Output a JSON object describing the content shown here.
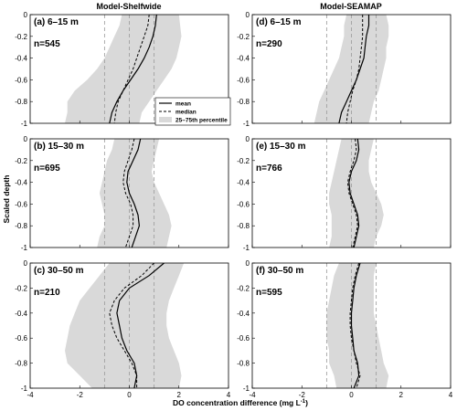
{
  "figure": {
    "column_titles": [
      "Model-Shelfwide",
      "Model-SEAMAP"
    ],
    "xlabel": "DO concentration difference (mg L",
    "xlabel_sup": "-1",
    "xlabel_end": ")",
    "ylabel": "Scaled depth"
  },
  "legend": {
    "mean": "mean",
    "median": "median",
    "band": "25–75th percentile"
  },
  "colors": {
    "band": "#d9d9d9",
    "line": "#000000",
    "ref": "#999999"
  },
  "chart_data": [
    {
      "type": "area",
      "panel": "(a) 6–15 m",
      "n": "n=545",
      "xlim": [
        -4,
        4
      ],
      "ylim": [
        -1,
        0
      ],
      "xticks": [
        "-4",
        "-2",
        "0",
        "2",
        "4"
      ],
      "yticks": [
        "-1",
        "-0.8",
        "-0.6",
        "-0.4",
        "-0.2",
        "0"
      ],
      "ref_x": [
        -1,
        0,
        1
      ],
      "depth": [
        0,
        -0.1,
        -0.2,
        -0.3,
        -0.4,
        -0.5,
        -0.6,
        -0.7,
        -0.8,
        -0.9,
        -1.0
      ],
      "mean": [
        1.1,
        1.05,
        0.95,
        0.8,
        0.6,
        0.35,
        0.05,
        -0.25,
        -0.5,
        -0.7,
        -0.8
      ],
      "median": [
        0.8,
        0.75,
        0.6,
        0.45,
        0.3,
        0.15,
        -0.05,
        -0.25,
        -0.45,
        -0.55,
        -0.6
      ],
      "p25": [
        -0.3,
        -0.4,
        -0.6,
        -0.8,
        -1.0,
        -1.3,
        -1.7,
        -2.2,
        -2.5,
        -2.5,
        -2.6
      ],
      "p75": [
        2.0,
        2.05,
        2.1,
        2.0,
        1.9,
        1.7,
        1.4,
        1.1,
        0.8,
        0.5,
        0.4
      ]
    },
    {
      "type": "area",
      "panel": "(b) 15–30 m",
      "n": "n=695",
      "xlim": [
        -4,
        4
      ],
      "ylim": [
        -1,
        0
      ],
      "xticks": [
        "-4",
        "-2",
        "0",
        "2",
        "4"
      ],
      "yticks": [
        "-1",
        "-0.8",
        "-0.6",
        "-0.4",
        "-0.2",
        "0"
      ],
      "ref_x": [
        -1,
        0,
        1
      ],
      "depth": [
        0,
        -0.1,
        -0.2,
        -0.3,
        -0.4,
        -0.5,
        -0.6,
        -0.7,
        -0.8,
        -0.9,
        -1.0
      ],
      "mean": [
        0.45,
        0.35,
        0.15,
        -0.05,
        -0.1,
        0.0,
        0.2,
        0.35,
        0.4,
        0.25,
        0.1
      ],
      "median": [
        0.2,
        0.1,
        -0.05,
        -0.2,
        -0.25,
        -0.15,
        0.05,
        0.15,
        0.15,
        0.0,
        -0.15
      ],
      "p25": [
        -0.6,
        -0.7,
        -0.9,
        -1.0,
        -1.1,
        -1.2,
        -1.1,
        -1.0,
        -1.0,
        -1.2,
        -1.3
      ],
      "p75": [
        1.2,
        1.1,
        1.0,
        0.9,
        1.0,
        1.2,
        1.4,
        1.6,
        1.7,
        1.6,
        1.5
      ]
    },
    {
      "type": "area",
      "panel": "(c) 30–50 m",
      "n": "n=210",
      "xlim": [
        -4,
        4
      ],
      "ylim": [
        -1,
        0
      ],
      "xticks": [
        "-4",
        "-2",
        "0",
        "2",
        "4"
      ],
      "yticks": [
        "-1",
        "-0.8",
        "-0.6",
        "-0.4",
        "-0.2",
        "0"
      ],
      "ref_x": [
        -1,
        0,
        1
      ],
      "depth": [
        0,
        -0.1,
        -0.2,
        -0.3,
        -0.4,
        -0.5,
        -0.6,
        -0.7,
        -0.8,
        -0.9,
        -1.0
      ],
      "mean": [
        1.4,
        0.8,
        0.0,
        -0.4,
        -0.5,
        -0.4,
        -0.3,
        -0.1,
        0.2,
        0.3,
        0.2
      ],
      "median": [
        1.0,
        0.5,
        -0.2,
        -0.6,
        -0.8,
        -0.7,
        -0.5,
        -0.2,
        0.1,
        0.3,
        0.3
      ],
      "p25": [
        -0.8,
        -1.2,
        -1.6,
        -2.0,
        -2.2,
        -2.4,
        -2.5,
        -2.6,
        -2.5,
        -2.0,
        -1.5
      ],
      "p75": [
        2.2,
        2.0,
        1.8,
        1.6,
        1.5,
        1.5,
        1.6,
        1.8,
        2.0,
        2.1,
        2.0
      ]
    },
    {
      "type": "area",
      "panel": "(d) 6–15 m",
      "n": "n=290",
      "xlim": [
        -4,
        4
      ],
      "ylim": [
        -1,
        0
      ],
      "xticks": [
        "-4",
        "-2",
        "0",
        "2",
        "4"
      ],
      "yticks": [
        "-1",
        "-0.8",
        "-0.6",
        "-0.4",
        "-0.2",
        "0"
      ],
      "ref_x": [
        -1,
        0,
        1
      ],
      "depth": [
        0,
        -0.1,
        -0.2,
        -0.3,
        -0.4,
        -0.5,
        -0.6,
        -0.7,
        -0.8,
        -0.9,
        -1.0
      ],
      "mean": [
        0.7,
        0.7,
        0.6,
        0.55,
        0.5,
        0.35,
        0.2,
        0.0,
        -0.2,
        -0.4,
        -0.5
      ],
      "median": [
        0.45,
        0.45,
        0.45,
        0.4,
        0.35,
        0.3,
        0.2,
        0.05,
        -0.05,
        -0.15,
        -0.2
      ],
      "p25": [
        -0.2,
        -0.3,
        -0.3,
        -0.4,
        -0.5,
        -0.7,
        -0.9,
        -1.1,
        -1.3,
        -1.4,
        -1.5
      ],
      "p75": [
        1.4,
        1.5,
        1.5,
        1.4,
        1.4,
        1.3,
        1.2,
        1.1,
        0.9,
        0.8,
        0.7
      ]
    },
    {
      "type": "area",
      "panel": "(e) 15–30 m",
      "n": "n=766",
      "xlim": [
        -4,
        4
      ],
      "ylim": [
        -1,
        0
      ],
      "xticks": [
        "-4",
        "-2",
        "0",
        "2",
        "4"
      ],
      "yticks": [
        "-1",
        "-0.8",
        "-0.6",
        "-0.4",
        "-0.2",
        "0"
      ],
      "ref_x": [
        -1,
        0,
        1
      ],
      "depth": [
        0,
        -0.1,
        -0.2,
        -0.3,
        -0.4,
        -0.5,
        -0.6,
        -0.7,
        -0.8,
        -0.9,
        -1.0
      ],
      "mean": [
        0.25,
        0.3,
        0.2,
        0.0,
        -0.1,
        -0.05,
        0.1,
        0.25,
        0.3,
        0.2,
        0.1
      ],
      "median": [
        0.15,
        0.2,
        0.1,
        -0.05,
        -0.15,
        -0.1,
        0.05,
        0.2,
        0.25,
        0.15,
        0.05
      ],
      "p25": [
        -0.4,
        -0.5,
        -0.6,
        -0.7,
        -0.8,
        -0.9,
        -0.9,
        -0.8,
        -0.8,
        -0.8,
        -0.9
      ],
      "p75": [
        0.9,
        0.8,
        0.7,
        0.7,
        0.8,
        1.0,
        1.2,
        1.3,
        1.2,
        1.0,
        0.9
      ]
    },
    {
      "type": "area",
      "panel": "(f) 30–50 m",
      "n": "n=595",
      "xlim": [
        -4,
        4
      ],
      "ylim": [
        -1,
        0
      ],
      "xticks": [
        "-4",
        "-2",
        "0",
        "2",
        "4"
      ],
      "yticks": [
        "-1",
        "-0.8",
        "-0.6",
        "-0.4",
        "-0.2",
        "0"
      ],
      "ref_x": [
        -1,
        0,
        1
      ],
      "depth": [
        0,
        -0.1,
        -0.2,
        -0.3,
        -0.4,
        -0.5,
        -0.6,
        -0.7,
        -0.8,
        -0.9,
        -1.0
      ],
      "mean": [
        0.35,
        0.2,
        0.1,
        0.05,
        0.0,
        0.0,
        0.05,
        0.1,
        0.25,
        0.3,
        0.1
      ],
      "median": [
        0.3,
        0.15,
        0.05,
        0.0,
        -0.05,
        -0.05,
        0.0,
        0.1,
        0.2,
        0.35,
        0.2
      ],
      "p25": [
        -0.5,
        -0.7,
        -0.8,
        -0.9,
        -1.0,
        -1.0,
        -1.0,
        -0.9,
        -0.9,
        -0.7,
        -0.6
      ],
      "p75": [
        1.0,
        0.9,
        0.9,
        0.9,
        0.9,
        1.0,
        1.1,
        1.2,
        1.3,
        1.5,
        1.4
      ]
    }
  ]
}
